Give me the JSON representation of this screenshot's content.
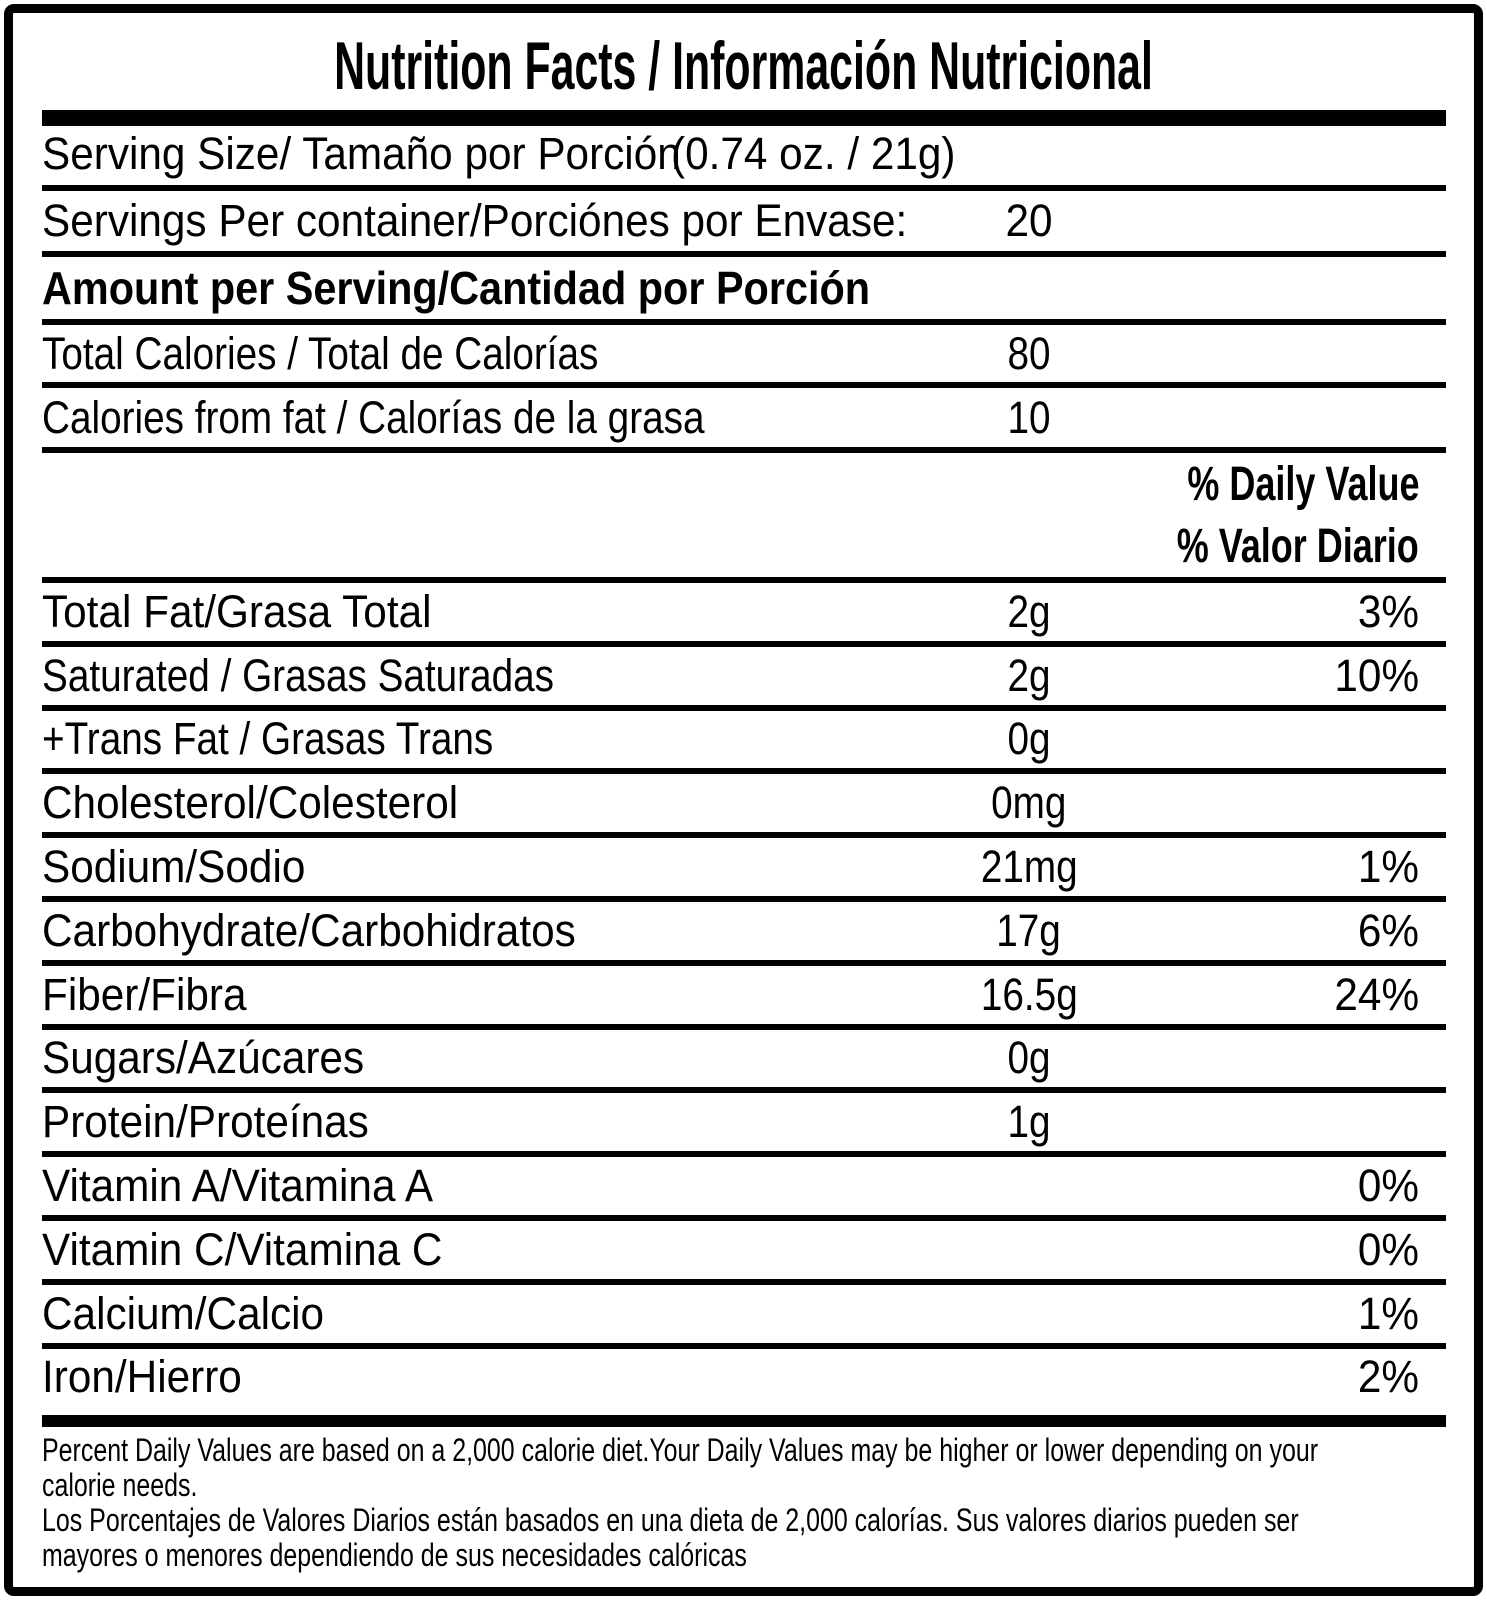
{
  "label": {
    "title": "Nutrition Facts / Información Nutricional",
    "serving_size": {
      "label": "Serving Size/ Tamaño por Porción",
      "value": "(0.74 oz. / 21g)"
    },
    "servings_per_container": {
      "label": "Servings Per container/Porciónes por Envase:",
      "value": "20"
    },
    "amount_header": "Amount per Serving/Cantidad por Porción",
    "calories_rows": [
      {
        "label": "Total Calories / Total de Calorías",
        "amount": "80"
      },
      {
        "label": "Calories from fat / Calorías de la grasa",
        "amount": "10"
      }
    ],
    "daily_value_header": {
      "line1": "% Daily Value",
      "line2": "% Valor Diario"
    },
    "nutrients": [
      {
        "label": "Total Fat/Grasa Total",
        "amount": "2g",
        "dv": "3%"
      },
      {
        "label": "Saturated / Grasas Saturadas",
        "amount": "2g",
        "dv": "10%"
      },
      {
        "label": "+Trans Fat / Grasas Trans",
        "amount": "0g",
        "dv": ""
      },
      {
        "label": "Cholesterol/Colesterol",
        "amount": "0mg",
        "dv": ""
      },
      {
        "label": "Sodium/Sodio",
        "amount": "21mg",
        "dv": "1%"
      },
      {
        "label": "Carbohydrate/Carbohidratos",
        "amount": "17g",
        "dv": "6%"
      },
      {
        "label": "Fiber/Fibra",
        "amount": "16.5g",
        "dv": "24%"
      },
      {
        "label": "Sugars/Azúcares",
        "amount": "0g",
        "dv": ""
      },
      {
        "label": "Protein/Proteínas",
        "amount": "1g",
        "dv": ""
      },
      {
        "label": "Vitamin A/Vitamina A",
        "amount": "",
        "dv": "0%"
      },
      {
        "label": "Vitamin C/Vitamina C",
        "amount": "",
        "dv": "0%"
      },
      {
        "label": "Calcium/Calcio",
        "amount": "",
        "dv": "1%"
      },
      {
        "label": "Iron/Hierro",
        "amount": "",
        "dv": "2%"
      }
    ],
    "footnote_lines": [
      "Percent Daily Values are based on a 2,000 calorie diet.Your Daily Values may be higher or lower depending on your",
      "calorie needs.",
      "Los Porcentajes de Valores Diarios están basados en una dieta de 2,000 calorías. Sus valores diarios pueden ser",
      "mayores o menores dependiendo de sus necesidades calóricas"
    ]
  },
  "colors": {
    "background": "#ffffff",
    "text": "#000000",
    "border": "#000000"
  }
}
